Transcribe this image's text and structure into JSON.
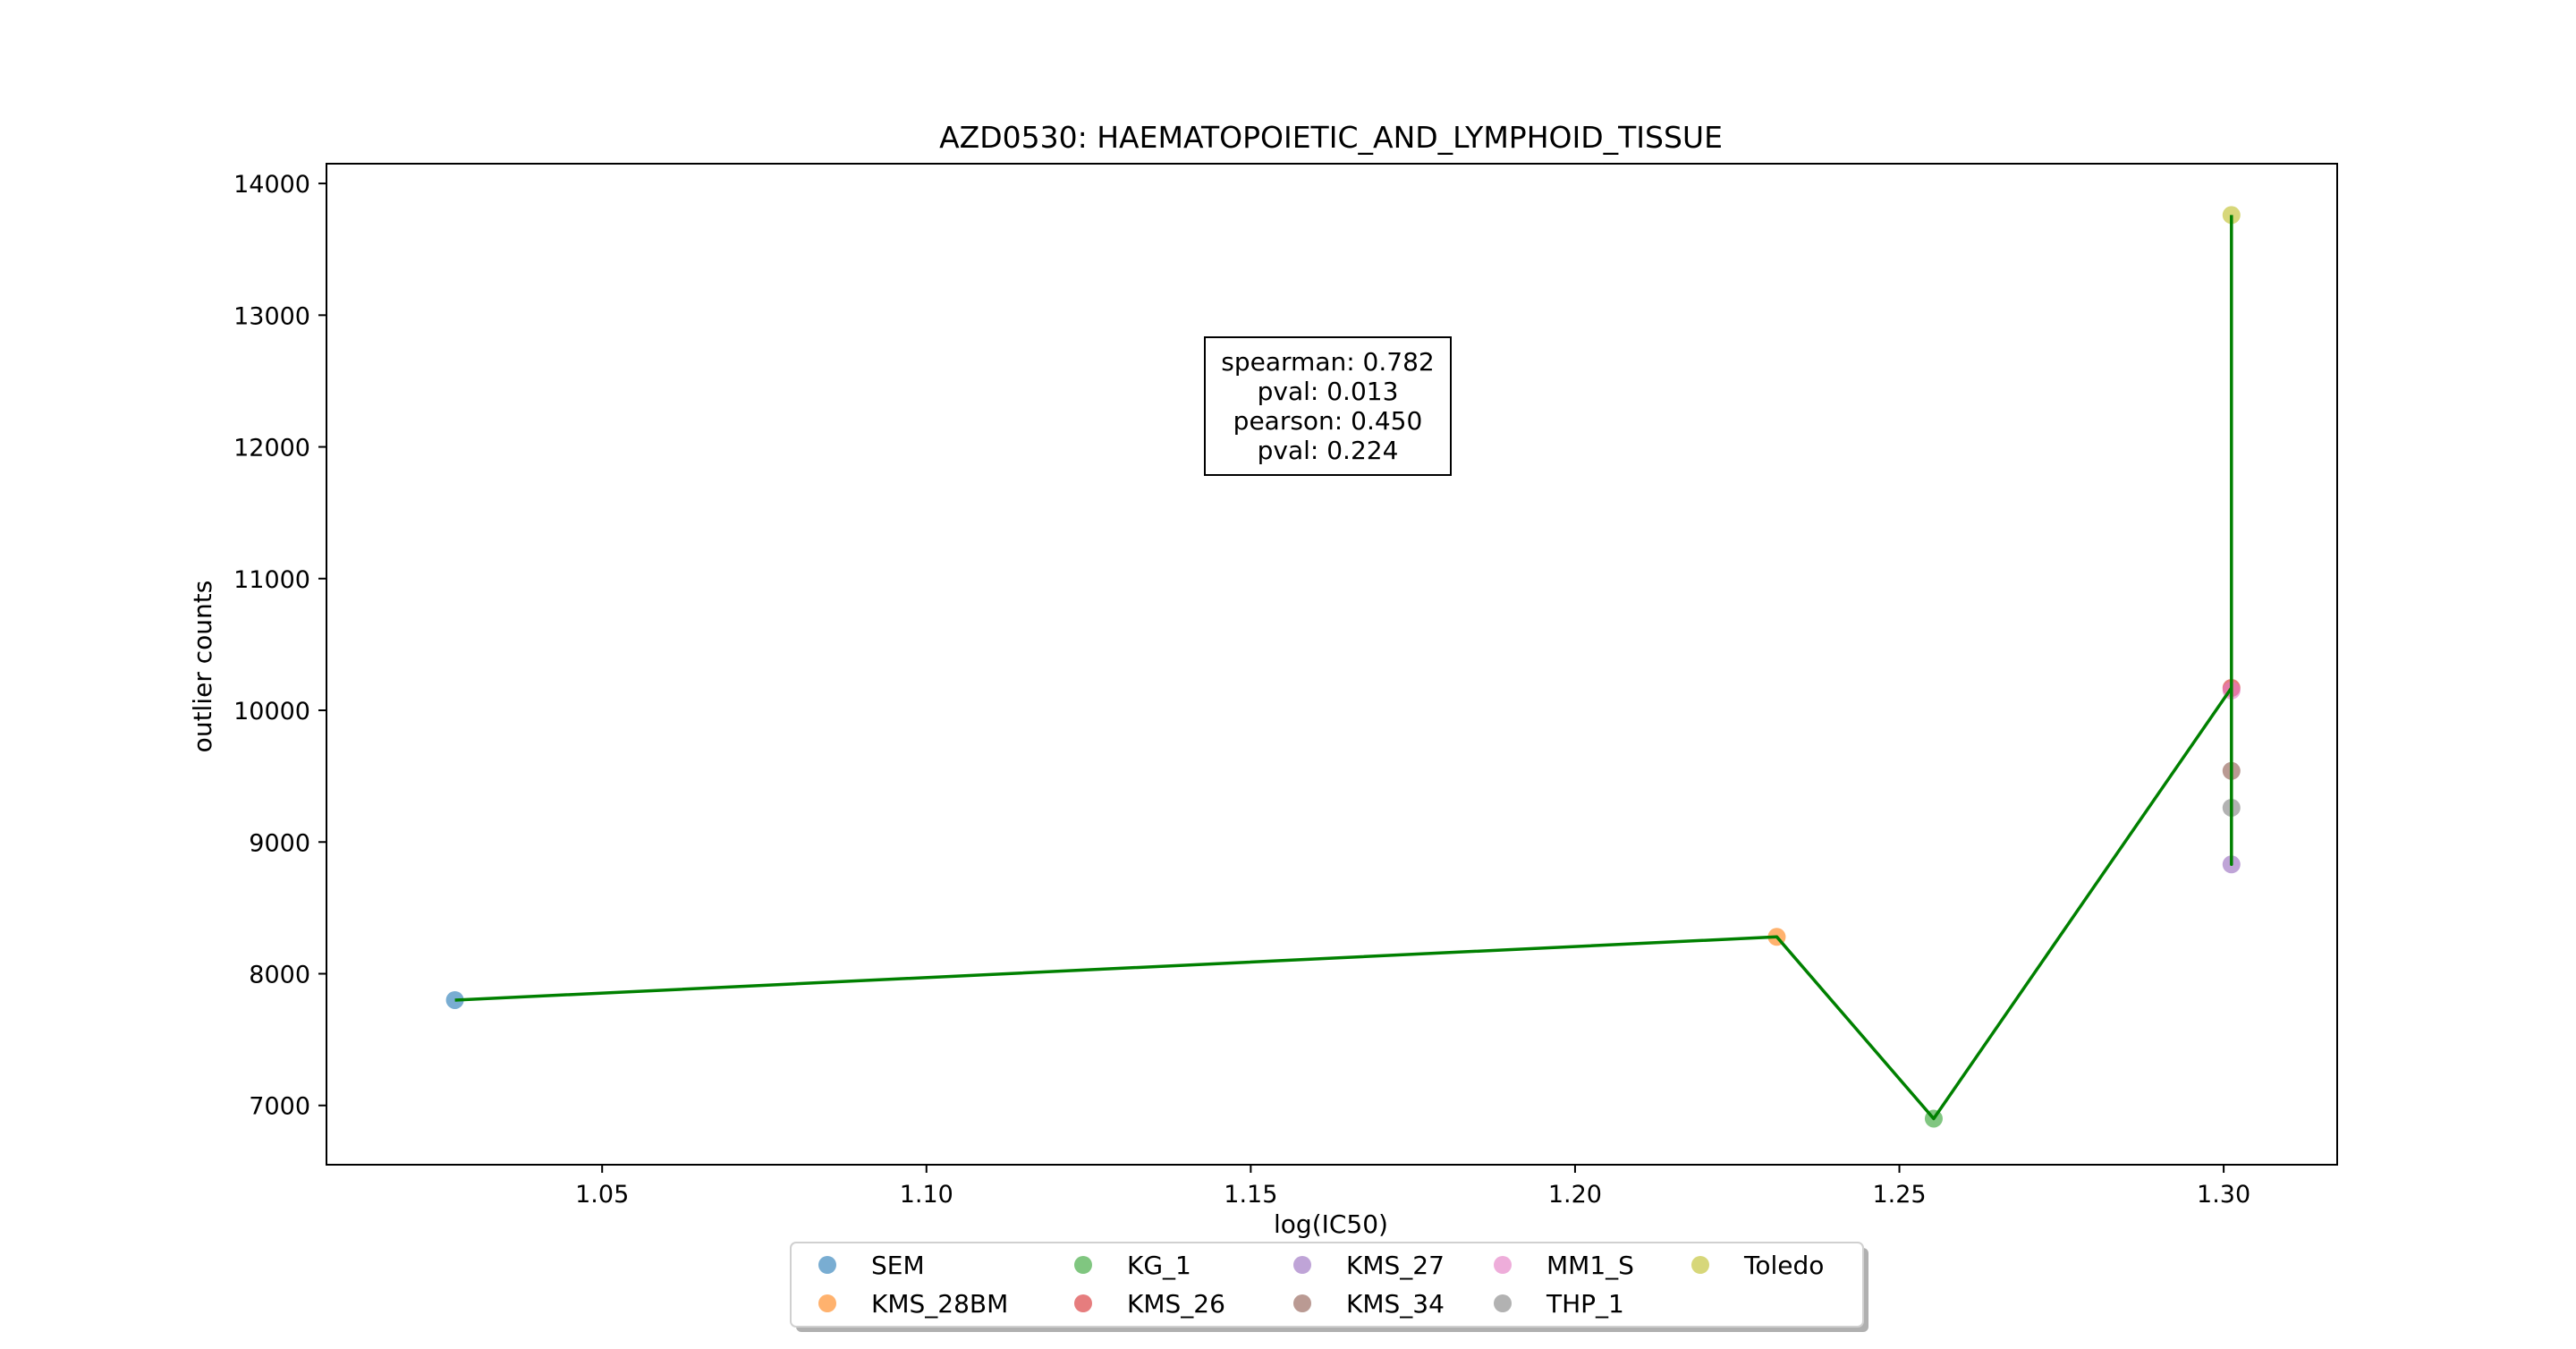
{
  "chart_data": {
    "type": "scatter",
    "title": "AZD0530: HAEMATOPOIETIC_AND_LYMPHOID_TISSUE",
    "xlabel": "log(IC50)",
    "ylabel": "outlier counts",
    "xlim": [
      1.0075,
      1.3175
    ],
    "ylim": [
      6550,
      14150
    ],
    "x_ticks": [
      1.05,
      1.1,
      1.15,
      1.2,
      1.25,
      1.3
    ],
    "x_tick_labels": [
      "1.05",
      "1.10",
      "1.15",
      "1.20",
      "1.25",
      "1.30"
    ],
    "y_ticks": [
      7000,
      8000,
      9000,
      10000,
      11000,
      12000,
      13000,
      14000
    ],
    "y_tick_labels": [
      "7000",
      "8000",
      "9000",
      "10000",
      "11000",
      "12000",
      "13000",
      "14000"
    ],
    "grid": false,
    "series": [
      {
        "name": "SEM",
        "x": 1.0273,
        "y": 7800,
        "color": "#1f77b4"
      },
      {
        "name": "KMS_28BM",
        "x": 1.2311,
        "y": 8280,
        "color": "#ff7f0e"
      },
      {
        "name": "KG_1",
        "x": 1.2553,
        "y": 6900,
        "color": "#2ca02c"
      },
      {
        "name": "KMS_27",
        "x": 1.3012,
        "y": 8830,
        "color": "#9467bd"
      },
      {
        "name": "KMS_26",
        "x": 1.3012,
        "y": 10170,
        "color": "#d62728"
      },
      {
        "name": "KMS_34",
        "x": 1.3012,
        "y": 9540,
        "color": "#8c564b"
      },
      {
        "name": "MM1_S",
        "x": 1.3012,
        "y": 10150,
        "color": "#e377c2"
      },
      {
        "name": "THP_1",
        "x": 1.3012,
        "y": 9260,
        "color": "#7f7f7f"
      },
      {
        "name": "Toledo",
        "x": 1.3012,
        "y": 13760,
        "color": "#bcbd22"
      }
    ],
    "trend_line": {
      "color": "#008000",
      "x": [
        1.0273,
        1.2311,
        1.2553,
        1.3012,
        1.3012,
        1.3012,
        1.3012,
        1.3012,
        1.3012
      ],
      "y": [
        7800,
        8280,
        6900,
        10170,
        10150,
        9540,
        9260,
        8830,
        13760
      ]
    },
    "annotation": {
      "lines": [
        "spearman: 0.782",
        "pval: 0.013",
        "pearson: 0.450",
        "pval: 0.224"
      ]
    },
    "legend": {
      "placement": "bottom-center",
      "columns": 5,
      "order": [
        "SEM",
        "KMS_28BM",
        "KG_1",
        "KMS_26",
        "KMS_27",
        "KMS_34",
        "MM1_S",
        "THP_1",
        "Toledo"
      ]
    }
  }
}
